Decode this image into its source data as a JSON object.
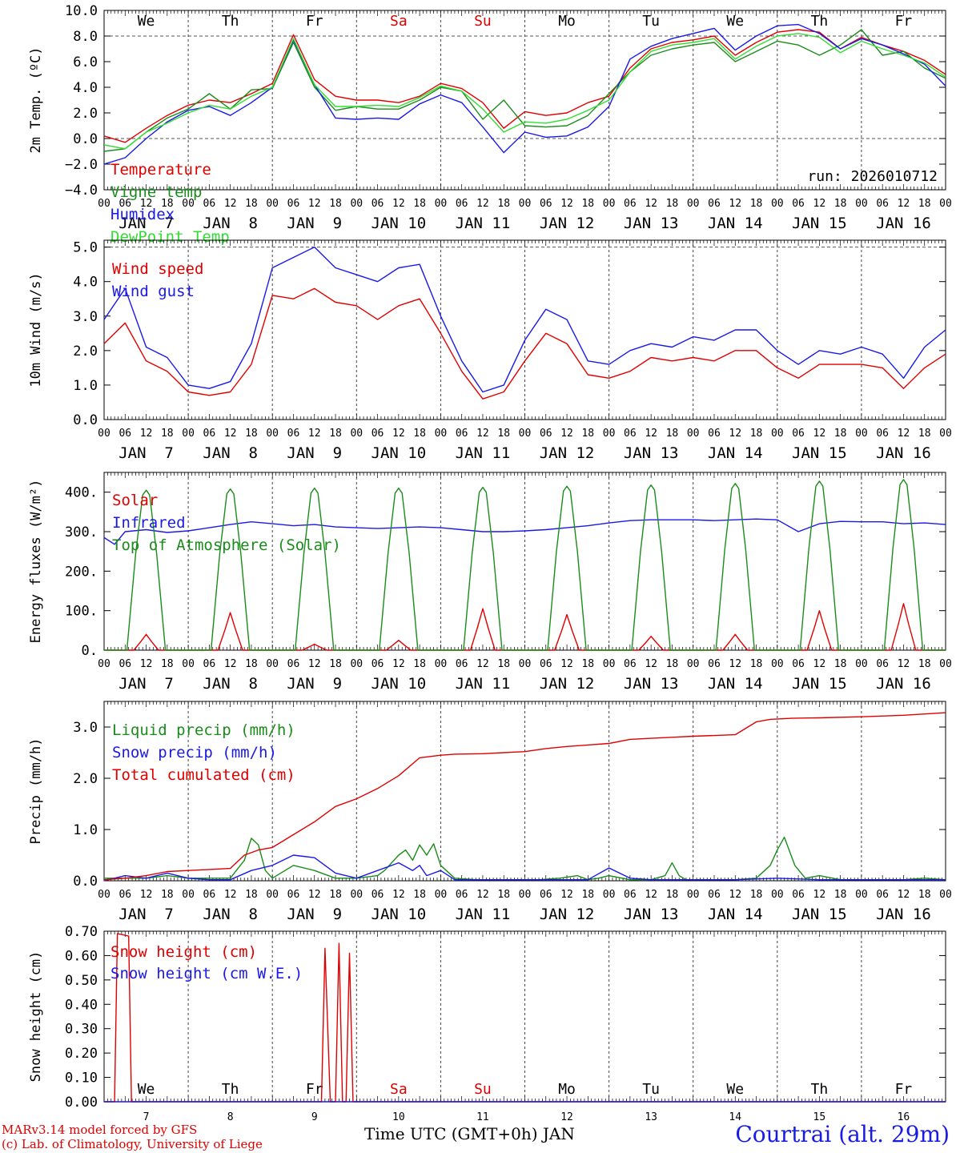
{
  "run_label": "run: 2026010712",
  "footer": {
    "model_line": "MARv3.14 model forced by GFS",
    "credit_line": "(c) Lab. of Climatology, University of Liege",
    "xlabel": "Time UTC (GMT+0h) JAN",
    "location": "Courtrai (alt. 29m)"
  },
  "weekdays": [
    "We",
    "Th",
    "Fr",
    "Sa",
    "Su",
    "Mo",
    "Tu",
    "We",
    "Th",
    "Fr"
  ],
  "date_labels": [
    "JAN  7",
    "JAN  8",
    "JAN  9",
    "JAN 10",
    "JAN 11",
    "JAN 12",
    "JAN 13",
    "JAN 14",
    "JAN 15",
    "JAN 16"
  ],
  "day_numbers": [
    "7",
    "8",
    "9",
    "10",
    "11",
    "12",
    "13",
    "14",
    "15",
    "16"
  ],
  "hour_ticks": [
    "00",
    "06",
    "12",
    "18"
  ],
  "hour_end": "00",
  "colors": {
    "red": "#e00000",
    "green": "#1a8c1a",
    "blue": "#1a1ae6",
    "lime": "#33dd33",
    "weekend": "#e00000"
  },
  "chart_data": [
    {
      "id": "temp",
      "type": "line",
      "ylabel": "2m Temp. (ºC)",
      "ylim": [
        -4,
        10
      ],
      "yticks": [
        -4,
        -2,
        0,
        2,
        4,
        6,
        8,
        10
      ],
      "ytick_labels": [
        "−4.0",
        "−2.0",
        "0.0",
        "2.0",
        "4.0",
        "6.0",
        "8.0",
        "10.0"
      ],
      "dashed_y": [
        0,
        8
      ],
      "x_hours": [
        0,
        6,
        12,
        18,
        24,
        30,
        36,
        42,
        48,
        54,
        60,
        66,
        72,
        78,
        84,
        90,
        96,
        102,
        108,
        114,
        120,
        126,
        132,
        138,
        144,
        150,
        156,
        162,
        168,
        174,
        180,
        186,
        192,
        198,
        204,
        210,
        216,
        222,
        228,
        234,
        240
      ],
      "series": [
        {
          "name": "Temperature",
          "color": "red",
          "values": [
            0.2,
            -0.3,
            0.8,
            1.8,
            2.6,
            3.0,
            2.8,
            3.5,
            4.3,
            8.1,
            4.6,
            3.3,
            3.0,
            3.0,
            2.8,
            3.3,
            4.3,
            3.9,
            2.8,
            0.8,
            2.1,
            1.8,
            2.0,
            2.8,
            3.3,
            5.5,
            7.0,
            7.5,
            7.7,
            8.0,
            6.5,
            7.5,
            8.3,
            8.5,
            8.3,
            7.0,
            7.9,
            7.3,
            6.8,
            6.1,
            5.0
          ]
        },
        {
          "name": "Vigne temp",
          "color": "green",
          "values": [
            -1.0,
            -0.8,
            0.5,
            1.6,
            2.3,
            3.5,
            2.3,
            3.8,
            3.9,
            7.5,
            4.0,
            2.2,
            2.5,
            2.3,
            2.3,
            3.0,
            4.0,
            3.7,
            1.5,
            3.0,
            1.0,
            0.9,
            1.0,
            1.8,
            3.5,
            5.2,
            6.5,
            7.0,
            7.3,
            7.5,
            6.0,
            6.8,
            7.6,
            7.3,
            6.5,
            7.3,
            8.5,
            6.5,
            6.8,
            5.5,
            4.7
          ]
        },
        {
          "name": "Humidex",
          "color": "blue",
          "values": [
            -2.0,
            -1.5,
            0.0,
            1.3,
            2.2,
            2.5,
            1.8,
            2.8,
            4.0,
            7.7,
            4.2,
            1.6,
            1.5,
            1.6,
            1.5,
            2.7,
            3.4,
            2.8,
            0.9,
            -1.1,
            0.5,
            0.1,
            0.2,
            0.9,
            2.5,
            6.2,
            7.2,
            7.8,
            8.2,
            8.6,
            6.9,
            8.0,
            8.8,
            8.9,
            8.2,
            7.0,
            7.8,
            7.3,
            6.6,
            5.8,
            4.1
          ]
        },
        {
          "name": "DewPoint Temp",
          "color": "lime",
          "values": [
            -0.5,
            -0.8,
            0.5,
            1.2,
            2.0,
            2.6,
            2.3,
            3.3,
            4.0,
            7.8,
            4.2,
            2.5,
            2.5,
            2.6,
            2.5,
            3.2,
            4.1,
            3.7,
            2.3,
            0.5,
            1.3,
            1.2,
            1.5,
            2.2,
            3.0,
            5.2,
            6.8,
            7.3,
            7.5,
            7.8,
            6.2,
            7.2,
            8.0,
            8.2,
            7.9,
            6.7,
            7.6,
            7.0,
            6.5,
            5.9,
            4.8
          ]
        }
      ]
    },
    {
      "id": "wind",
      "type": "line",
      "ylabel": "10m Wind (m/s)",
      "ylim": [
        0,
        5.2
      ],
      "yticks": [
        0,
        1,
        2,
        3,
        4,
        5
      ],
      "ytick_labels": [
        "0.0",
        "1.0",
        "2.0",
        "3.0",
        "4.0",
        "5.0"
      ],
      "dashed_y": [
        5
      ],
      "x_hours": [
        0,
        6,
        12,
        18,
        24,
        30,
        36,
        42,
        48,
        54,
        60,
        66,
        72,
        78,
        84,
        90,
        96,
        102,
        108,
        114,
        120,
        126,
        132,
        138,
        144,
        150,
        156,
        162,
        168,
        174,
        180,
        186,
        192,
        198,
        204,
        210,
        216,
        222,
        228,
        234,
        240
      ],
      "series": [
        {
          "name": "Wind speed",
          "color": "red",
          "values": [
            2.2,
            2.8,
            1.7,
            1.4,
            0.8,
            0.7,
            0.8,
            1.6,
            3.6,
            3.5,
            3.8,
            3.4,
            3.3,
            2.9,
            3.3,
            3.5,
            2.5,
            1.4,
            0.6,
            0.8,
            1.7,
            2.5,
            2.2,
            1.3,
            1.2,
            1.4,
            1.8,
            1.7,
            1.8,
            1.7,
            2.0,
            2.0,
            1.5,
            1.2,
            1.6,
            1.6,
            1.6,
            1.5,
            0.9,
            1.5,
            1.9
          ]
        },
        {
          "name": "Wind gust",
          "color": "blue",
          "values": [
            2.9,
            3.8,
            2.1,
            1.8,
            1.0,
            0.9,
            1.1,
            2.2,
            4.4,
            4.7,
            5.0,
            4.4,
            4.2,
            4.0,
            4.4,
            4.5,
            3.0,
            1.7,
            0.8,
            1.0,
            2.3,
            3.2,
            2.9,
            1.7,
            1.6,
            2.0,
            2.2,
            2.1,
            2.4,
            2.3,
            2.6,
            2.6,
            2.0,
            1.6,
            2.0,
            1.9,
            2.1,
            1.9,
            1.2,
            2.1,
            2.6
          ]
        }
      ]
    },
    {
      "id": "flux",
      "type": "line",
      "ylabel": "Energy fluxes (W/m²)",
      "ylim": [
        0,
        450
      ],
      "yticks": [
        0,
        100,
        200,
        300,
        400
      ],
      "ytick_labels": [
        "0.",
        "100.",
        "200.",
        "300.",
        "400."
      ],
      "dashed_y": [],
      "daily_peaks": {
        "Top of Atmosphere (Solar)": [
          405,
          408,
          410,
          410,
          412,
          415,
          418,
          422,
          428,
          432
        ],
        "Solar": [
          40,
          95,
          15,
          25,
          105,
          90,
          35,
          40,
          100,
          118
        ]
      },
      "series": [
        {
          "name": "Solar",
          "color": "red"
        },
        {
          "name": "Infrared",
          "color": "blue",
          "x_hours": [
            0,
            3,
            6,
            12,
            18,
            24,
            30,
            36,
            42,
            48,
            54,
            60,
            66,
            72,
            78,
            84,
            90,
            96,
            102,
            108,
            114,
            120,
            126,
            132,
            138,
            144,
            150,
            156,
            162,
            168,
            174,
            180,
            186,
            192,
            198,
            204,
            210,
            216,
            222,
            228,
            234,
            240
          ],
          "values": [
            285,
            268,
            300,
            305,
            298,
            302,
            310,
            318,
            325,
            320,
            315,
            318,
            312,
            310,
            308,
            310,
            312,
            310,
            305,
            300,
            300,
            302,
            305,
            310,
            315,
            322,
            328,
            330,
            330,
            330,
            328,
            330,
            332,
            330,
            300,
            320,
            326,
            325,
            325,
            320,
            322,
            318
          ]
        },
        {
          "name": "Top of Atmosphere (Solar)",
          "color": "green"
        }
      ]
    },
    {
      "id": "precip",
      "type": "line",
      "ylabel": "Precip (mm/h)",
      "ylim": [
        0,
        3.5
      ],
      "yticks": [
        0,
        1,
        2,
        3
      ],
      "ytick_labels": [
        "0.0",
        "1.0",
        "2.0",
        "3.0"
      ],
      "dashed_y": [],
      "series": [
        {
          "name": "Liquid precip (mm/h)",
          "color": "green",
          "x_hours": [
            0,
            6,
            12,
            18,
            24,
            30,
            36,
            40,
            42,
            44,
            46,
            48,
            54,
            60,
            66,
            72,
            78,
            80,
            84,
            86,
            88,
            90,
            92,
            94,
            96,
            100,
            106,
            112,
            118,
            124,
            130,
            135,
            138,
            141,
            144,
            150,
            156,
            160,
            162,
            164,
            166,
            170,
            180,
            186,
            190,
            192,
            194,
            197,
            200,
            204,
            210,
            216,
            222,
            228,
            234,
            240
          ],
          "values": [
            0.05,
            0.05,
            0.05,
            0.1,
            0.05,
            0.05,
            0.05,
            0.4,
            0.83,
            0.7,
            0.2,
            0.05,
            0.3,
            0.2,
            0.05,
            0.05,
            0.1,
            0.2,
            0.5,
            0.6,
            0.4,
            0.7,
            0.5,
            0.72,
            0.3,
            0.05,
            0.02,
            0.02,
            0.02,
            0.02,
            0.05,
            0.1,
            0.02,
            0.05,
            0.1,
            0.02,
            0.02,
            0.1,
            0.35,
            0.1,
            0.02,
            0.02,
            0.02,
            0.05,
            0.3,
            0.6,
            0.85,
            0.3,
            0.05,
            0.1,
            0.02,
            0.02,
            0.02,
            0.02,
            0.05,
            0.02
          ]
        },
        {
          "name": "Snow precip (mm/h)",
          "color": "blue",
          "x_hours": [
            0,
            6,
            12,
            18,
            24,
            30,
            36,
            42,
            48,
            54,
            60,
            66,
            72,
            78,
            84,
            88,
            90,
            92,
            96,
            100,
            106,
            112,
            118,
            124,
            130,
            138,
            144,
            150,
            156,
            168,
            180,
            192,
            204,
            216,
            228,
            240
          ],
          "values": [
            0.0,
            0.1,
            0.05,
            0.15,
            0.05,
            0.02,
            0.02,
            0.2,
            0.3,
            0.5,
            0.45,
            0.15,
            0.05,
            0.2,
            0.35,
            0.2,
            0.3,
            0.1,
            0.2,
            0.02,
            0.02,
            0.02,
            0.02,
            0.02,
            0.02,
            0.02,
            0.25,
            0.05,
            0.02,
            0.02,
            0.02,
            0.05,
            0.02,
            0.02,
            0.02,
            0.02
          ]
        },
        {
          "name": "Total cumulated (cm)",
          "color": "red",
          "x_hours": [
            0,
            6,
            12,
            18,
            24,
            30,
            36,
            40,
            44,
            48,
            54,
            60,
            66,
            72,
            78,
            84,
            90,
            96,
            100,
            108,
            114,
            120,
            126,
            132,
            138,
            144,
            150,
            156,
            162,
            168,
            180,
            186,
            190,
            196,
            204,
            216,
            228,
            240
          ],
          "values": [
            0.02,
            0.05,
            0.1,
            0.18,
            0.2,
            0.22,
            0.24,
            0.5,
            0.6,
            0.65,
            0.9,
            1.15,
            1.45,
            1.6,
            1.8,
            2.05,
            2.4,
            2.45,
            2.47,
            2.48,
            2.5,
            2.52,
            2.58,
            2.62,
            2.65,
            2.68,
            2.76,
            2.78,
            2.8,
            2.82,
            2.85,
            3.1,
            3.15,
            3.17,
            3.18,
            3.2,
            3.23,
            3.28
          ]
        }
      ]
    },
    {
      "id": "snow",
      "type": "line",
      "ylabel": "Snow height (cm)",
      "ylim": [
        0,
        0.7
      ],
      "yticks": [
        0,
        0.1,
        0.2,
        0.3,
        0.4,
        0.5,
        0.6,
        0.7
      ],
      "ytick_labels": [
        "0.00",
        "0.10",
        "0.20",
        "0.30",
        "0.40",
        "0.50",
        "0.60",
        "0.70"
      ],
      "dashed_y": [],
      "series": [
        {
          "name": "Snow height (cm)",
          "color": "red",
          "x_hours": [
            0,
            3,
            3.8,
            7,
            7.8,
            58,
            62,
            63,
            64.5,
            66,
            67,
            68,
            69,
            70,
            71,
            240
          ],
          "values": [
            0,
            0,
            0.69,
            0.68,
            0,
            0,
            0,
            0.63,
            0,
            0,
            0.65,
            0,
            0,
            0.61,
            0,
            0
          ]
        },
        {
          "name": "Snow height (cm W.E.)",
          "color": "blue",
          "x_hours": [
            0,
            240
          ],
          "values": [
            0,
            0
          ]
        }
      ]
    }
  ]
}
